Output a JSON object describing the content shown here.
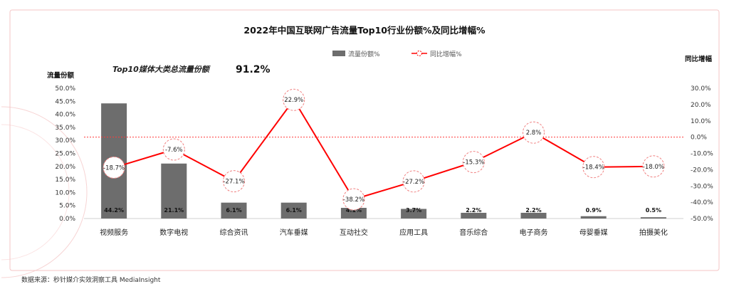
{
  "chart_data": {
    "type": "bar",
    "title": "2022年中国互联网广告流量Top10行业份额%及同比增幅%",
    "ylabel_left": "流量份额",
    "ylabel_right": "同比增幅",
    "categories": [
      "视频服务",
      "数字电视",
      "综合资讯",
      "汽车垂媒",
      "互动社交",
      "应用工具",
      "音乐综合",
      "电子商务",
      "母婴垂媒",
      "拍摄美化"
    ],
    "series": [
      {
        "name": "流量份额%",
        "type": "bar",
        "axis": "left",
        "color": "#6d6d6d",
        "values": [
          44.2,
          21.1,
          6.1,
          6.1,
          4.1,
          3.7,
          2.2,
          2.2,
          0.9,
          0.5
        ],
        "labels": [
          "44.2%",
          "21.1%",
          "6.1%",
          "6.1%",
          "4.1%",
          "3.7%",
          "2.2%",
          "2.2%",
          "0.9%",
          "0.5%"
        ]
      },
      {
        "name": "同比增幅%",
        "type": "line",
        "axis": "right",
        "color": "#ff0000",
        "values": [
          -18.7,
          -7.6,
          -27.1,
          22.9,
          -38.2,
          -27.2,
          -15.3,
          2.8,
          -18.4,
          -18.0
        ],
        "labels": [
          "-18.7%",
          "-7.6%",
          "-27.1%",
          "22.9%",
          "-38.2%",
          "-27.2%",
          "-15.3%",
          "2.8%",
          "-18.4%",
          "-18.0%"
        ]
      }
    ],
    "ylim_left": [
      0,
      50
    ],
    "ylim_right": [
      -50,
      30
    ],
    "yticks_left": [
      "0.0%",
      "5.0%",
      "10.0%",
      "15.0%",
      "20.0%",
      "25.0%",
      "30.0%",
      "35.0%",
      "40.0%",
      "45.0%",
      "50.0%"
    ],
    "yticks_right": [
      "-50.0%",
      "-40.0%",
      "-30.0%",
      "-20.0%",
      "-10.0%",
      "0.0%",
      "10.0%",
      "20.0%",
      "30.0%"
    ],
    "reference_line": 0,
    "grid": false,
    "legend": "top-center"
  },
  "annotation": {
    "text": "Top10媒体大类总流量份额",
    "value": "91.2%"
  },
  "source": "数据来源：秒针媒介实效洞察工具 MediaInsight",
  "colors": {
    "bar": "#6d6d6d",
    "line": "#ff0000",
    "marker_circle": "#f08080",
    "reference_line": "#ff3b3b",
    "background": "#ffffff",
    "panel_border": "#f4c6c6"
  }
}
